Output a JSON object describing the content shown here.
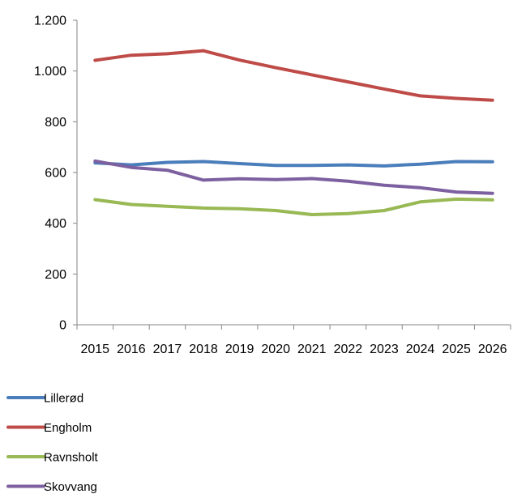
{
  "chart_data": {
    "type": "line",
    "title": "",
    "xlabel": "",
    "ylabel": "",
    "x": [
      "2015",
      "2016",
      "2017",
      "2018",
      "2019",
      "2020",
      "2021",
      "2022",
      "2023",
      "2024",
      "2025",
      "2026"
    ],
    "ylim": [
      0,
      1200
    ],
    "yticks": [
      0,
      200,
      400,
      600,
      800,
      1000,
      1200
    ],
    "ytick_labels": [
      "0",
      "200",
      "400",
      "600",
      "800",
      "1.000",
      "1.200"
    ],
    "grid": false,
    "legend_position": "bottom",
    "series": [
      {
        "name": "Lillerød",
        "color": "#4a7ebb",
        "values": [
          638,
          630,
          640,
          643,
          635,
          628,
          628,
          630,
          626,
          633,
          643,
          642
        ]
      },
      {
        "name": "Engholm",
        "color": "#be4b48",
        "values": [
          1042,
          1062,
          1068,
          1080,
          1043,
          1013,
          985,
          957,
          929,
          902,
          892,
          885
        ]
      },
      {
        "name": "Ravnsholt",
        "color": "#98b954",
        "values": [
          493,
          474,
          467,
          460,
          457,
          450,
          434,
          438,
          450,
          484,
          495,
          492
        ]
      },
      {
        "name": "Skovvang",
        "color": "#7d60a0",
        "values": [
          645,
          620,
          609,
          570,
          575,
          572,
          576,
          566,
          550,
          540,
          523,
          518
        ]
      }
    ]
  }
}
